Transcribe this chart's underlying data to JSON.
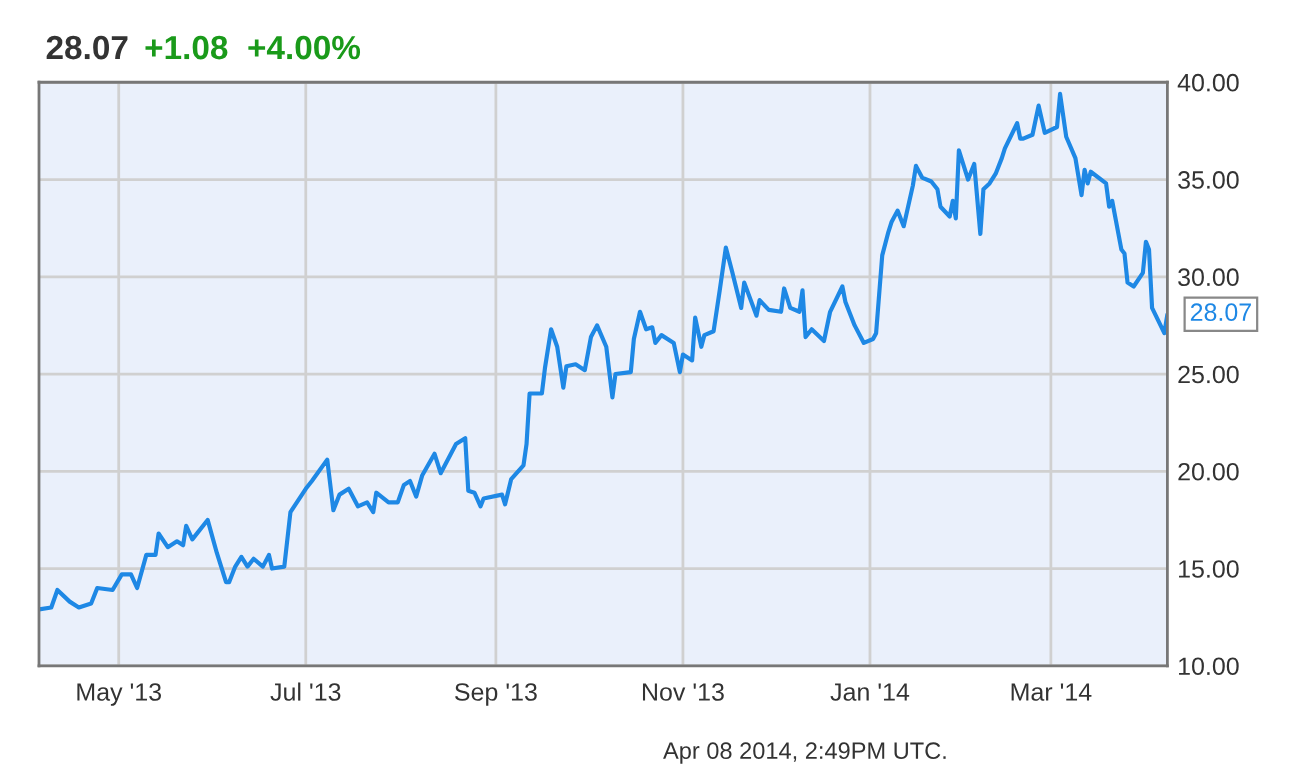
{
  "chart_data": {
    "type": "line",
    "title": "28.07",
    "subtitle": "+1.08  +4.00%",
    "x": [
      "2013-04-05",
      "2013-04-09",
      "2013-04-11",
      "2013-04-15",
      "2013-04-18",
      "2013-04-22",
      "2013-04-24",
      "2013-04-29",
      "2013-05-02",
      "2013-05-05",
      "2013-05-07",
      "2013-05-10",
      "2013-05-13",
      "2013-05-14",
      "2013-05-17",
      "2013-05-20",
      "2013-05-22",
      "2013-05-23",
      "2013-05-25",
      "2013-05-30",
      "2013-06-02",
      "2013-06-05",
      "2013-06-06",
      "2013-06-08",
      "2013-06-10",
      "2013-06-12",
      "2013-06-14",
      "2013-06-17",
      "2013-06-19",
      "2013-06-20",
      "2013-06-24",
      "2013-06-26",
      "2013-07-01",
      "2013-07-03",
      "2013-07-08",
      "2013-07-10",
      "2013-07-12",
      "2013-07-15",
      "2013-07-18",
      "2013-07-21",
      "2013-07-23",
      "2013-07-24",
      "2013-07-28",
      "2013-07-31",
      "2013-08-02",
      "2013-08-04",
      "2013-08-06",
      "2013-08-08",
      "2013-08-12",
      "2013-08-14",
      "2013-08-19",
      "2013-08-22",
      "2013-08-23",
      "2013-08-25",
      "2013-08-27",
      "2013-08-28",
      "2013-09-03",
      "2013-09-04",
      "2013-09-06",
      "2013-09-10",
      "2013-09-11",
      "2013-09-12",
      "2013-09-16",
      "2013-09-17",
      "2013-09-19",
      "2013-09-21",
      "2013-09-23",
      "2013-09-24",
      "2013-09-27",
      "2013-09-30",
      "2013-10-02",
      "2013-10-04",
      "2013-10-07",
      "2013-10-09",
      "2013-10-10",
      "2013-10-15",
      "2013-10-16",
      "2013-10-18",
      "2013-10-20",
      "2013-10-22",
      "2013-10-23",
      "2013-10-25",
      "2013-10-29",
      "2013-10-31",
      "2013-11-01",
      "2013-11-04",
      "2013-11-05",
      "2013-11-07",
      "2013-11-08",
      "2013-11-11",
      "2013-11-13",
      "2013-11-15",
      "2013-11-17",
      "2013-11-20",
      "2013-11-21",
      "2013-11-25",
      "2013-11-26",
      "2013-11-29",
      "2013-12-03",
      "2013-12-04",
      "2013-12-06",
      "2013-12-09",
      "2013-12-10",
      "2013-12-11",
      "2013-12-13",
      "2013-12-17",
      "2013-12-19",
      "2013-12-23",
      "2013-12-24",
      "2013-12-27",
      "2013-12-30",
      "2014-01-02",
      "2014-01-03",
      "2014-01-05",
      "2014-01-07",
      "2014-01-08",
      "2014-01-10",
      "2014-01-12",
      "2014-01-15",
      "2014-01-16",
      "2014-01-18",
      "2014-01-21",
      "2014-01-23",
      "2014-01-24",
      "2014-01-27",
      "2014-01-28",
      "2014-01-29",
      "2014-01-30",
      "2014-02-02",
      "2014-02-04",
      "2014-02-06",
      "2014-02-07",
      "2014-02-09",
      "2014-02-11",
      "2014-02-13",
      "2014-02-14",
      "2014-02-18",
      "2014-02-19",
      "2014-02-20",
      "2014-02-23",
      "2014-02-25",
      "2014-02-27",
      "2014-03-03",
      "2014-03-04",
      "2014-03-06",
      "2014-03-09",
      "2014-03-11",
      "2014-03-12",
      "2014-03-13",
      "2014-03-14",
      "2014-03-19",
      "2014-03-20",
      "2014-03-21",
      "2014-03-24",
      "2014-03-25",
      "2014-03-26",
      "2014-03-28",
      "2014-03-31",
      "2014-04-01",
      "2014-04-02",
      "2014-04-03",
      "2014-04-07",
      "2014-04-08"
    ],
    "series": [
      {
        "color": "#1e88e5",
        "values": [
          12.9,
          13.0,
          13.9,
          13.3,
          13.0,
          13.2,
          14.0,
          13.9,
          14.7,
          14.7,
          14.0,
          15.7,
          15.7,
          16.8,
          16.1,
          16.4,
          16.2,
          17.2,
          16.5,
          17.5,
          15.8,
          14.3,
          14.3,
          15.1,
          15.6,
          15.1,
          15.5,
          15.1,
          15.7,
          15.0,
          15.1,
          17.9,
          19.1,
          19.5,
          20.6,
          18.0,
          18.8,
          19.1,
          18.2,
          18.4,
          17.9,
          18.9,
          18.4,
          18.4,
          19.3,
          19.5,
          18.7,
          19.8,
          20.9,
          19.9,
          21.4,
          21.7,
          19.0,
          18.9,
          18.2,
          18.6,
          18.8,
          18.3,
          19.6,
          20.3,
          21.4,
          24.0,
          24.0,
          25.3,
          27.3,
          26.4,
          24.3,
          25.4,
          25.5,
          25.2,
          26.9,
          27.5,
          26.4,
          23.8,
          25.0,
          25.1,
          26.8,
          28.2,
          27.3,
          27.4,
          26.6,
          27.0,
          26.6,
          25.1,
          26.0,
          25.7,
          27.9,
          26.4,
          27.0,
          27.2,
          29.3,
          31.5,
          30.3,
          28.4,
          29.7,
          28.0,
          28.8,
          28.3,
          28.2,
          29.4,
          28.4,
          28.2,
          29.3,
          26.9,
          27.3,
          26.7,
          28.2,
          29.5,
          28.7,
          27.5,
          26.6,
          26.8,
          27.1,
          31.1,
          32.3,
          32.8,
          33.4,
          32.6,
          34.7,
          35.7,
          35.1,
          34.9,
          34.5,
          33.6,
          33.1,
          33.9,
          33.0,
          36.5,
          35.0,
          35.8,
          32.2,
          34.5,
          34.8,
          35.3,
          36.1,
          36.6,
          37.9,
          37.1,
          37.1,
          37.3,
          38.8,
          37.4,
          37.7,
          39.4,
          37.2,
          36.1,
          34.2,
          35.5,
          34.8,
          35.4,
          34.8,
          33.6,
          33.9,
          31.4,
          31.2,
          29.7,
          29.5,
          30.2,
          31.8,
          31.4,
          28.4,
          27.1,
          28.07
        ]
      }
    ],
    "xlim": [
      "2013-04-05",
      "2014-04-08"
    ],
    "xticks": [
      {
        "value": "2013-05-01",
        "label": "May '13"
      },
      {
        "value": "2013-07-01",
        "label": "Jul '13"
      },
      {
        "value": "2013-09-01",
        "label": "Sep '13"
      },
      {
        "value": "2013-11-01",
        "label": "Nov '13"
      },
      {
        "value": "2014-01-01",
        "label": "Jan '14"
      },
      {
        "value": "2014-03-01",
        "label": "Mar '14"
      }
    ],
    "ylim": [
      10,
      40
    ],
    "yticks": [
      {
        "value": 10,
        "label": "10.00"
      },
      {
        "value": 15,
        "label": "15.00"
      },
      {
        "value": 20,
        "label": "20.00"
      },
      {
        "value": 25,
        "label": "25.00"
      },
      {
        "value": 30,
        "label": "30.00"
      },
      {
        "value": 35,
        "label": "35.00"
      },
      {
        "value": 40,
        "label": "40.00"
      }
    ],
    "grid": true,
    "marker": "none",
    "line_style": "solid",
    "annotations": [
      {
        "text": "28.07",
        "x": "2014-04-08",
        "y": 28.07
      },
      "Apr 08 2014, 2:49PM UTC."
    ]
  }
}
